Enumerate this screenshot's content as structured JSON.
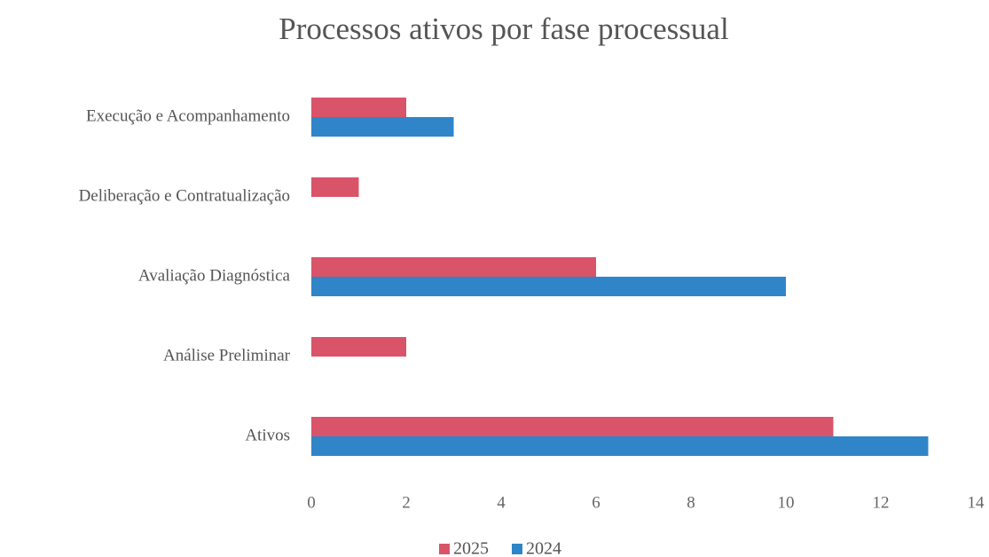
{
  "chart_data": {
    "type": "bar",
    "orientation": "horizontal",
    "title": "Processos ativos por fase processual",
    "categories": [
      "Execução e Acompanhamento",
      "Deliberação e Contratualização",
      "Avaliação Diagnóstica",
      "Análise Preliminar",
      "Ativos"
    ],
    "series": [
      {
        "name": "2025",
        "color": "#d95468",
        "values": [
          2,
          1,
          6,
          2,
          11
        ]
      },
      {
        "name": "2024",
        "color": "#2f85c8",
        "values": [
          3,
          0,
          10,
          0,
          13
        ]
      }
    ],
    "xlim": [
      0,
      14
    ],
    "xticks": [
      0,
      2,
      4,
      6,
      8,
      10,
      12,
      14
    ],
    "grid": false,
    "legend": "bottom"
  }
}
